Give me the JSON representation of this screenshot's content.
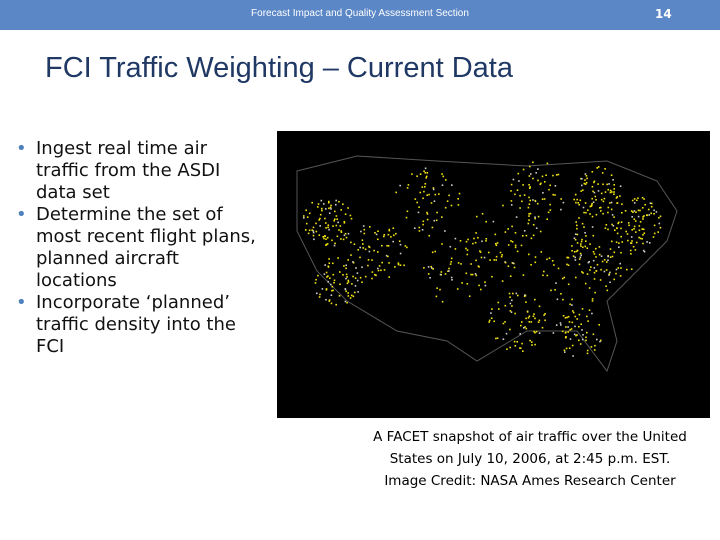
{
  "header": {
    "section": "Forecast Impact and Quality Assessment Section",
    "page_number": "14"
  },
  "title": "FCI Traffic Weighting – Current Data",
  "bullets": [
    "Ingest real time air traffic from the ASDI data set",
    "Determine the set of most recent flight plans, planned aircraft locations",
    "Incorporate ‘planned’ traffic density into the FCI"
  ],
  "caption": [
    "A FACET snapshot of air traffic over the United",
    "States on July 10, 2006, at 2:45 p.m. EST.",
    "Image Credit: NASA Ames Research Center"
  ]
}
